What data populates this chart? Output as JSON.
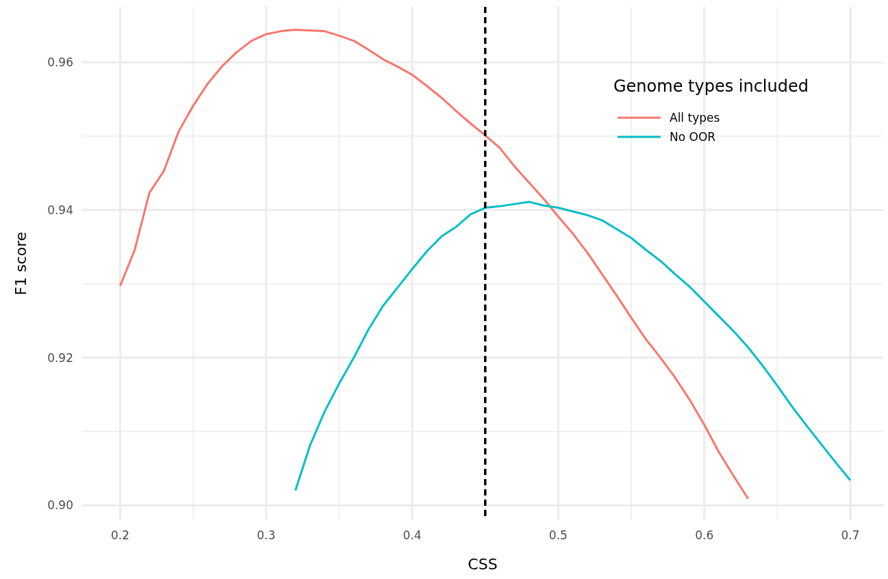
{
  "chart_data": {
    "type": "line",
    "xlabel": "CSS",
    "ylabel": "F1 score",
    "legend_title": "Genome types included",
    "legend": "top right",
    "grid": true,
    "line_style": "solid",
    "marker": "none",
    "xlim": [
      0.174,
      0.7225
    ],
    "ylim": [
      0.898,
      0.9675
    ],
    "xticks": [
      0.2,
      {
        "value": 0.25,
        "label": null
      },
      0.3,
      {
        "value": 0.35,
        "label": null
      },
      0.4,
      {
        "value": 0.45,
        "label": null
      },
      0.5,
      {
        "value": 0.55,
        "label": null
      },
      0.6,
      {
        "value": 0.65,
        "label": null
      },
      0.7
    ],
    "yticks": [
      {
        "value": 0.9,
        "label": "0.90"
      },
      {
        "value": 0.91,
        "label": null
      },
      0.92,
      {
        "value": 0.93,
        "label": null
      },
      0.94,
      {
        "value": 0.95,
        "label": null
      },
      0.96
    ],
    "series": [
      {
        "name": "All types",
        "color": "#f8766d",
        "x": [
          0.2,
          0.21,
          0.22,
          0.23,
          0.24,
          0.25,
          0.26,
          0.27,
          0.28,
          0.29,
          0.3,
          0.31,
          0.32,
          0.33,
          0.34,
          0.35,
          0.36,
          0.37,
          0.38,
          0.39,
          0.4,
          0.41,
          0.42,
          0.43,
          0.44,
          0.45,
          0.46,
          0.47,
          0.48,
          0.49,
          0.5,
          0.51,
          0.52,
          0.53,
          0.54,
          0.55,
          0.56,
          0.57,
          0.58,
          0.59,
          0.6,
          0.61,
          0.62,
          0.63
        ],
        "values": [
          0.9297,
          0.9346,
          0.9423,
          0.9453,
          0.9506,
          0.9541,
          0.9571,
          0.9595,
          0.9614,
          0.9629,
          0.9638,
          0.9642,
          0.9644,
          0.9643,
          0.9642,
          0.9636,
          0.9629,
          0.9617,
          0.9604,
          0.9594,
          0.9583,
          0.9568,
          0.9552,
          0.9534,
          0.9517,
          0.9501,
          0.9484,
          0.9459,
          0.9437,
          0.9415,
          0.9391,
          0.9368,
          0.9342,
          0.9313,
          0.9284,
          0.9254,
          0.9225,
          0.92,
          0.9173,
          0.9143,
          0.9109,
          0.9072,
          0.904,
          0.9009
        ]
      },
      {
        "name": "No OOR",
        "color": "#00bfc4",
        "x": [
          0.32,
          0.33,
          0.34,
          0.35,
          0.36,
          0.37,
          0.38,
          0.39,
          0.4,
          0.41,
          0.42,
          0.43,
          0.44,
          0.45,
          0.46,
          0.47,
          0.48,
          0.49,
          0.5,
          0.51,
          0.52,
          0.53,
          0.54,
          0.55,
          0.56,
          0.57,
          0.58,
          0.59,
          0.6,
          0.61,
          0.62,
          0.63,
          0.64,
          0.65,
          0.66,
          0.67,
          0.68,
          0.69,
          0.7
        ],
        "values": [
          0.902,
          0.9081,
          0.9127,
          0.9165,
          0.92,
          0.9238,
          0.927,
          0.9295,
          0.932,
          0.9344,
          0.9364,
          0.9377,
          0.9394,
          0.9403,
          0.9405,
          0.9408,
          0.9411,
          0.9406,
          0.9403,
          0.9398,
          0.9393,
          0.9386,
          0.9374,
          0.9362,
          0.9346,
          0.9331,
          0.9313,
          0.9296,
          0.9276,
          0.9256,
          0.9236,
          0.9214,
          0.9189,
          0.9162,
          0.9134,
          0.9108,
          0.9083,
          0.9058,
          0.9034
        ]
      }
    ],
    "ref_lines": [
      {
        "axis": "x",
        "value": 0.45,
        "color": "#000000",
        "line_style": "dashed"
      }
    ]
  }
}
